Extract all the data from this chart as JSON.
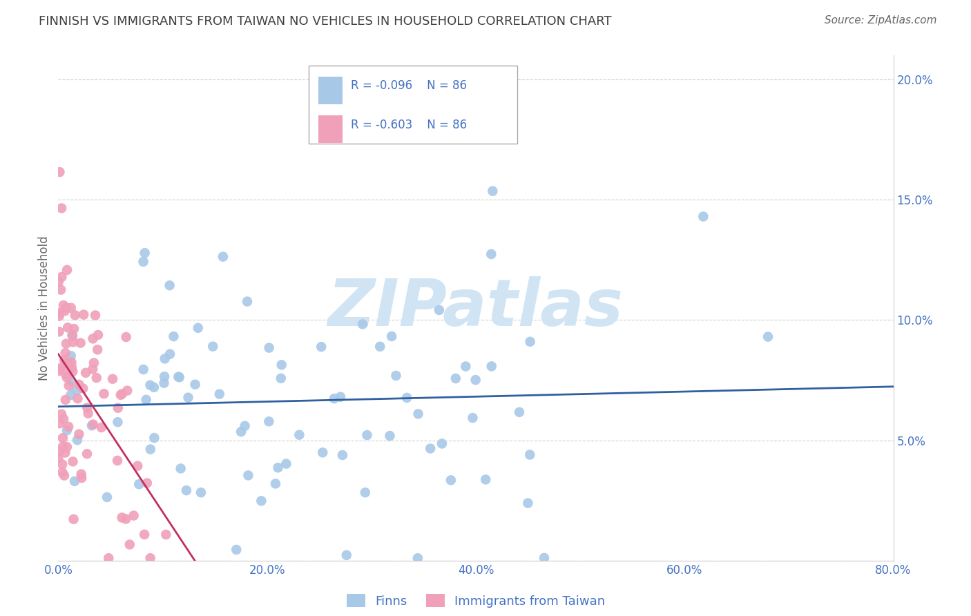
{
  "title": "FINNISH VS IMMIGRANTS FROM TAIWAN NO VEHICLES IN HOUSEHOLD CORRELATION CHART",
  "source": "Source: ZipAtlas.com",
  "ylabel": "No Vehicles in Household",
  "R_blue": -0.096,
  "N_blue": 86,
  "R_pink": -0.603,
  "N_pink": 86,
  "blue_color": "#a8c8e8",
  "pink_color": "#f0a0b8",
  "blue_line_color": "#3060a0",
  "pink_line_color": "#c03060",
  "watermark_text": "ZIPatlas",
  "watermark_color": "#d0e4f4",
  "background_color": "#ffffff",
  "grid_color": "#cccccc",
  "title_color": "#404040",
  "axis_label_color": "#4472c4",
  "legend_blue_label": "Finns",
  "legend_pink_label": "Immigrants from Taiwan"
}
